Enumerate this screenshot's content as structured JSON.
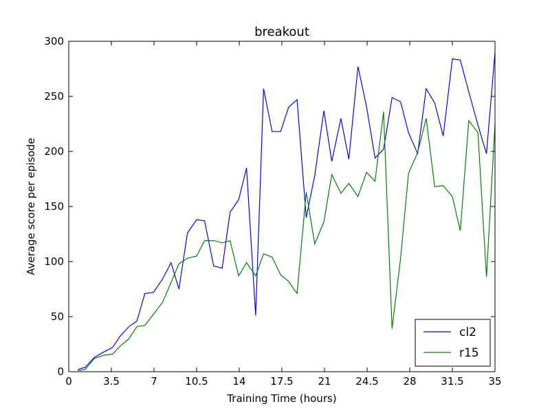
{
  "chart_data": {
    "type": "line",
    "title": "breakout",
    "xlabel": "Training Time (hours)",
    "ylabel": "Average score per episode",
    "xlim": [
      0,
      35
    ],
    "ylim": [
      0,
      300
    ],
    "xticks": [
      0,
      3.5,
      7,
      10.5,
      14,
      17.5,
      21,
      24.5,
      28,
      31.5,
      35
    ],
    "xtick_labels": [
      "0",
      "3.5",
      "7",
      "10.5",
      "14",
      "17.5",
      "21",
      "24.5",
      "28",
      "31.5",
      "35"
    ],
    "yticks": [
      0,
      50,
      100,
      150,
      200,
      250,
      300
    ],
    "ytick_labels": [
      "0",
      "50",
      "100",
      "150",
      "200",
      "250",
      "300"
    ],
    "grid": false,
    "legend": "bottom-right",
    "series": [
      {
        "name": "cl2",
        "color": "#0000ff",
        "x": [
          0.75,
          1.35,
          2.1,
          2.9,
          3.6,
          4.2,
          4.95,
          5.6,
          6.25,
          6.95,
          7.7,
          8.4,
          9.05,
          9.75,
          10.5,
          11.15,
          11.9,
          12.6,
          13.25,
          13.95,
          14.6,
          15.35,
          16,
          16.7,
          17.4,
          18.05,
          18.75,
          19.5,
          20.2,
          20.95,
          21.6,
          22.35,
          23,
          23.75,
          24.45,
          25.15,
          25.85,
          26.55,
          27.25,
          27.9,
          28.65,
          29.35,
          30.05,
          30.75,
          31.5,
          32.15,
          32.85,
          33.6,
          34.3,
          35
        ],
        "y": [
          2,
          4,
          13,
          18,
          22,
          32,
          41,
          46,
          71,
          72,
          84,
          99,
          75,
          126,
          138,
          137,
          96,
          94,
          145,
          156,
          185,
          51,
          257,
          218,
          218,
          240,
          247,
          140,
          178,
          237,
          191,
          230,
          193,
          277,
          241,
          194,
          202,
          249,
          245,
          217,
          198,
          257,
          244,
          214,
          284,
          283,
          254,
          224,
          198,
          290
        ]
      },
      {
        "name": "r15",
        "color": "#008000",
        "x": [
          0.75,
          1.35,
          2.1,
          2.9,
          3.6,
          4.2,
          4.95,
          5.6,
          6.25,
          6.95,
          7.7,
          8.4,
          9.05,
          9.75,
          10.5,
          11.15,
          11.9,
          12.6,
          13.25,
          13.95,
          14.6,
          15.35,
          16,
          16.7,
          17.4,
          18.05,
          18.75,
          19.5,
          20.2,
          20.95,
          21.6,
          22.35,
          23,
          23.75,
          24.45,
          25.15,
          25.85,
          26.55,
          27.25,
          27.9,
          28.65,
          29.35,
          30.05,
          30.75,
          31.5,
          32.15,
          32.85,
          33.6,
          34.3,
          35
        ],
        "y": [
          1,
          2,
          12,
          15,
          16,
          23,
          30,
          41,
          42,
          52,
          63,
          81,
          98,
          103,
          105,
          119,
          119,
          117,
          119,
          87,
          99,
          87,
          107,
          104,
          88,
          82,
          71,
          163,
          116,
          136,
          179,
          162,
          171,
          159,
          181,
          173,
          236,
          39,
          103,
          180,
          199,
          230,
          168,
          169,
          159,
          128,
          228,
          217,
          86,
          225
        ]
      }
    ]
  }
}
